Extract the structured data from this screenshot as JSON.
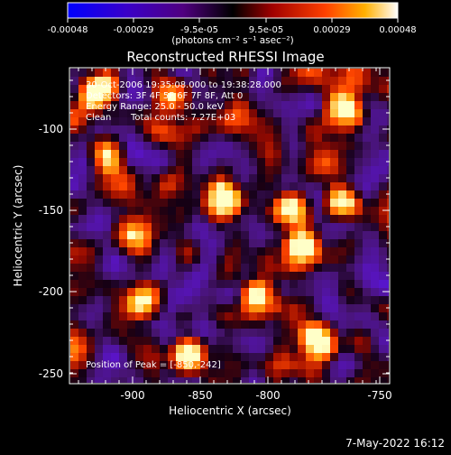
{
  "colorbar": {
    "ticks": [
      "-0.00048",
      "-0.00029",
      "-9.5e-05",
      "9.5e-05",
      "0.00029",
      "0.00048"
    ],
    "units": "(photons cm⁻² s⁻¹ asec⁻²)"
  },
  "plot": {
    "title": "Reconstructed RHESSI Image",
    "xlabel": "Heliocentric X (arcsec)",
    "ylabel": "Heliocentric Y (arcsec)",
    "xticks": [
      "-900",
      "-850",
      "-800",
      "-750"
    ],
    "yticks": [
      "-100",
      "-150",
      "-200",
      "-250"
    ]
  },
  "info": {
    "time_range": "30-Oct-2006 19:35:08.000 to 19:38:28.000",
    "detectors": "Detectors: 3F 4F 5F 6F 7F 8F, Att 0",
    "energy": "Energy Range: 25.0 - 50.0 keV",
    "method": "Clean",
    "counts": "Total counts: 7.27E+03",
    "peak": "Position of Peak = [-850,-242]"
  },
  "footer": {
    "date": "7-May-2022 16:12"
  },
  "colors": {
    "background": "#000000",
    "text": "#ffffff",
    "colormap": [
      "#0000ff",
      "#400080",
      "#000000",
      "#8b0000",
      "#ff4500",
      "#ffa500",
      "#ffffe0"
    ]
  }
}
